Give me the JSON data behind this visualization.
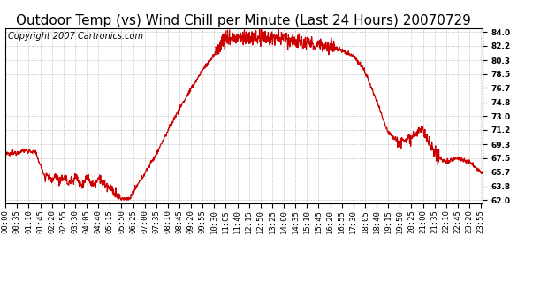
{
  "title": "Outdoor Temp (vs) Wind Chill per Minute (Last 24 Hours) 20070729",
  "copyright": "Copyright 2007 Cartronics.com",
  "line_color": "#cc0000",
  "background_color": "#ffffff",
  "plot_bg_color": "#ffffff",
  "grid_color": "#aaaaaa",
  "yticks": [
    62.0,
    63.8,
    65.7,
    67.5,
    69.3,
    71.2,
    73.0,
    74.8,
    76.7,
    78.5,
    80.3,
    82.2,
    84.0
  ],
  "ylim": [
    61.5,
    84.5
  ],
  "xtick_labels": [
    "00:00",
    "00:35",
    "01:10",
    "01:45",
    "02:20",
    "02:55",
    "03:30",
    "04:05",
    "04:40",
    "05:15",
    "05:50",
    "06:25",
    "07:00",
    "07:35",
    "08:10",
    "08:45",
    "09:20",
    "09:55",
    "10:30",
    "11:05",
    "11:40",
    "12:15",
    "12:50",
    "13:25",
    "14:00",
    "14:35",
    "15:10",
    "15:45",
    "16:20",
    "16:55",
    "17:30",
    "18:05",
    "18:40",
    "19:15",
    "19:50",
    "20:25",
    "21:00",
    "21:35",
    "22:10",
    "22:45",
    "23:20",
    "23:55"
  ],
  "title_fontsize": 11,
  "copyright_fontsize": 7,
  "tick_fontsize": 6.5,
  "linewidth": 0.9
}
